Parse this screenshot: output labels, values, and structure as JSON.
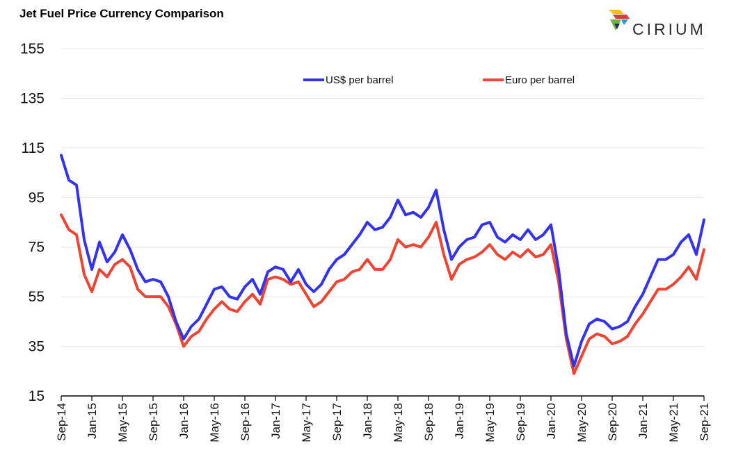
{
  "header": {
    "title": "Jet Fuel Price Currency Comparison"
  },
  "logo": {
    "text": "CIRIUM"
  },
  "colors": {
    "usd": "#3333ee",
    "eur": "#ee4433",
    "grid": "#e6e6e6",
    "axis": "#000000"
  },
  "chart_data": {
    "type": "line",
    "title": "Jet Fuel Price Currency Comparison",
    "xlabel": "",
    "ylabel": "",
    "ylim": [
      15,
      155
    ],
    "yticks": [
      15,
      35,
      55,
      75,
      95,
      115,
      135,
      155
    ],
    "grid": true,
    "legend_position": "top",
    "xticks": [
      "Sep-14",
      "Jan-15",
      "May-15",
      "Sep-15",
      "Jan-16",
      "May-16",
      "Sep-16",
      "Jan-17",
      "May-17",
      "Sep-17",
      "Jan-18",
      "May-18",
      "Sep-18",
      "Jan-19",
      "May-19",
      "Sep-19",
      "Jan-20",
      "May-20",
      "Sep-20",
      "Jan-21",
      "May-21",
      "Sep-21"
    ],
    "x": [
      "Sep-14",
      "Oct-14",
      "Nov-14",
      "Dec-14",
      "Jan-15",
      "Feb-15",
      "Mar-15",
      "Apr-15",
      "May-15",
      "Jun-15",
      "Jul-15",
      "Aug-15",
      "Sep-15",
      "Oct-15",
      "Nov-15",
      "Dec-15",
      "Jan-16",
      "Feb-16",
      "Mar-16",
      "Apr-16",
      "May-16",
      "Jun-16",
      "Jul-16",
      "Aug-16",
      "Sep-16",
      "Oct-16",
      "Nov-16",
      "Dec-16",
      "Jan-17",
      "Feb-17",
      "Mar-17",
      "Apr-17",
      "May-17",
      "Jun-17",
      "Jul-17",
      "Aug-17",
      "Sep-17",
      "Oct-17",
      "Nov-17",
      "Dec-17",
      "Jan-18",
      "Feb-18",
      "Mar-18",
      "Apr-18",
      "May-18",
      "Jun-18",
      "Jul-18",
      "Aug-18",
      "Sep-18",
      "Oct-18",
      "Nov-18",
      "Dec-18",
      "Jan-19",
      "Feb-19",
      "Mar-19",
      "Apr-19",
      "May-19",
      "Jun-19",
      "Jul-19",
      "Aug-19",
      "Sep-19",
      "Oct-19",
      "Nov-19",
      "Dec-19",
      "Jan-20",
      "Feb-20",
      "Mar-20",
      "Apr-20",
      "May-20",
      "Jun-20",
      "Jul-20",
      "Aug-20",
      "Sep-20",
      "Oct-20",
      "Nov-20",
      "Dec-20",
      "Jan-21",
      "Feb-21",
      "Mar-21",
      "Apr-21",
      "May-21",
      "Jun-21",
      "Jul-21",
      "Aug-21",
      "Sep-21"
    ],
    "series": [
      {
        "name": "US$ per barrel",
        "values": [
          112,
          102,
          100,
          78,
          66,
          77,
          69,
          73,
          80,
          74,
          66,
          61,
          62,
          61,
          55,
          45,
          38,
          43,
          46,
          52,
          58,
          59,
          55,
          54,
          59,
          62,
          56,
          65,
          67,
          66,
          61,
          66,
          60,
          57,
          60,
          66,
          70,
          72,
          76,
          80,
          85,
          82,
          83,
          87,
          94,
          88,
          89,
          87,
          91,
          98,
          82,
          70,
          75,
          78,
          79,
          84,
          85,
          79,
          77,
          80,
          78,
          82,
          78,
          80,
          84,
          66,
          40,
          27,
          37,
          44,
          46,
          45,
          42,
          43,
          45,
          51,
          56,
          63,
          70,
          70,
          72,
          77,
          80,
          72,
          86
        ]
      },
      {
        "name": "Euro per barrel",
        "values": [
          88,
          82,
          80,
          64,
          57,
          66,
          63,
          68,
          70,
          67,
          58,
          55,
          55,
          55,
          51,
          44,
          35,
          39,
          41,
          46,
          50,
          53,
          50,
          49,
          53,
          56,
          52,
          62,
          63,
          62,
          60,
          61,
          56,
          51,
          53,
          57,
          61,
          62,
          65,
          66,
          70,
          66,
          66,
          70,
          78,
          75,
          76,
          75,
          79,
          85,
          72,
          62,
          68,
          70,
          71,
          73,
          76,
          72,
          70,
          73,
          71,
          74,
          71,
          72,
          76,
          61,
          38,
          24,
          31,
          38,
          40,
          39,
          36,
          37,
          39,
          44,
          48,
          53,
          58,
          58,
          60,
          63,
          67,
          62,
          74
        ]
      }
    ]
  }
}
